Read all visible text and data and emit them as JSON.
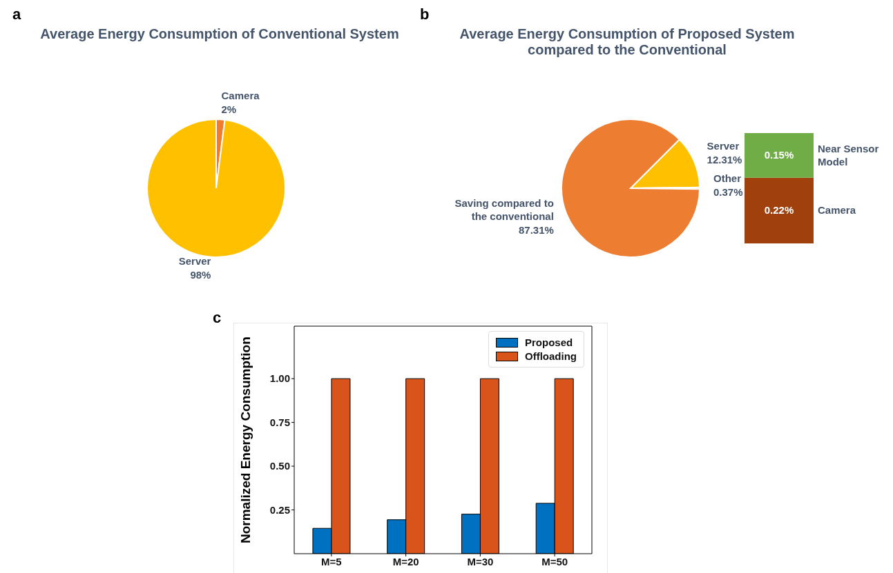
{
  "chart_data": [
    {
      "type": "pie",
      "title": "Average Energy Consumption of Conventional System",
      "annotations": [
        "a"
      ],
      "categories": [
        "Camera",
        "Server"
      ],
      "values": [
        2,
        98
      ],
      "colors": [
        "#ed7d31",
        "#ffc000"
      ],
      "value_labels": [
        "2%",
        "98%"
      ]
    },
    {
      "type": "pie",
      "title": "Average Energy Consumption of Proposed System compared to the Conventional",
      "annotations": [
        "b"
      ],
      "categories": [
        "Server",
        "Other",
        "Saving compared to the conventional"
      ],
      "values": [
        12.31,
        0.37,
        87.31
      ],
      "colors": [
        "#ffc000",
        "#8a5a00",
        "#ed7d31"
      ],
      "value_labels": [
        "12.31%",
        "0.37%",
        "87.31%"
      ]
    },
    {
      "type": "bar",
      "stacked": true,
      "categories": [
        null
      ],
      "series": [
        {
          "name": "Camera",
          "color": "#a0410d",
          "values": [
            0.22
          ],
          "value_labels": [
            "0.22%"
          ]
        },
        {
          "name": "Near Sensor Model",
          "color": "#70ad47",
          "values": [
            0.15
          ],
          "value_labels": [
            "0.15%"
          ]
        }
      ]
    },
    {
      "type": "bar",
      "annotations": [
        "c"
      ],
      "ylabel": "Normalized Energy Consumption",
      "categories": [
        "M=5",
        "M=20",
        "M=30",
        "M=50"
      ],
      "series": [
        {
          "name": "Proposed",
          "color": "#0070c0",
          "values": [
            0.145,
            0.194,
            0.226,
            0.288
          ]
        },
        {
          "name": "Offloading",
          "color": "#d9541a",
          "values": [
            1,
            1,
            1,
            1
          ]
        }
      ],
      "ylim": [
        0,
        1.3
      ],
      "yticks": [
        {
          "value": 0.25,
          "label": "0.25"
        },
        {
          "value": 0.5,
          "label": "0.50"
        },
        {
          "value": 0.75,
          "label": "0.75"
        },
        {
          "value": 1,
          "label": "1.00"
        }
      ],
      "legend": "top right",
      "grid": false
    }
  ]
}
